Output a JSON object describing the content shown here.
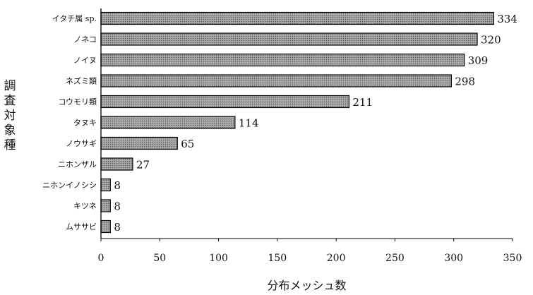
{
  "chart_data": {
    "type": "bar",
    "orientation": "horizontal",
    "categories": [
      "イタチ属 sp.",
      "ノネコ",
      "ノイヌ",
      "ネズミ類",
      "コウモリ類",
      "タヌキ",
      "ノウサギ",
      "ニホンザル",
      "ニホンイノシシ",
      "キツネ",
      "ムササビ"
    ],
    "values": [
      334,
      320,
      309,
      298,
      211,
      114,
      65,
      27,
      8,
      8,
      8
    ],
    "xlabel": "分布メッシュ数",
    "ylabel": "調査対象種",
    "xlim": [
      0,
      350
    ],
    "xticks": [
      0,
      50,
      100,
      150,
      200,
      250,
      300,
      350
    ],
    "data_labels": true,
    "grid": false,
    "bar_fill": "#9a9a9a",
    "bar_edge": "#000000"
  }
}
